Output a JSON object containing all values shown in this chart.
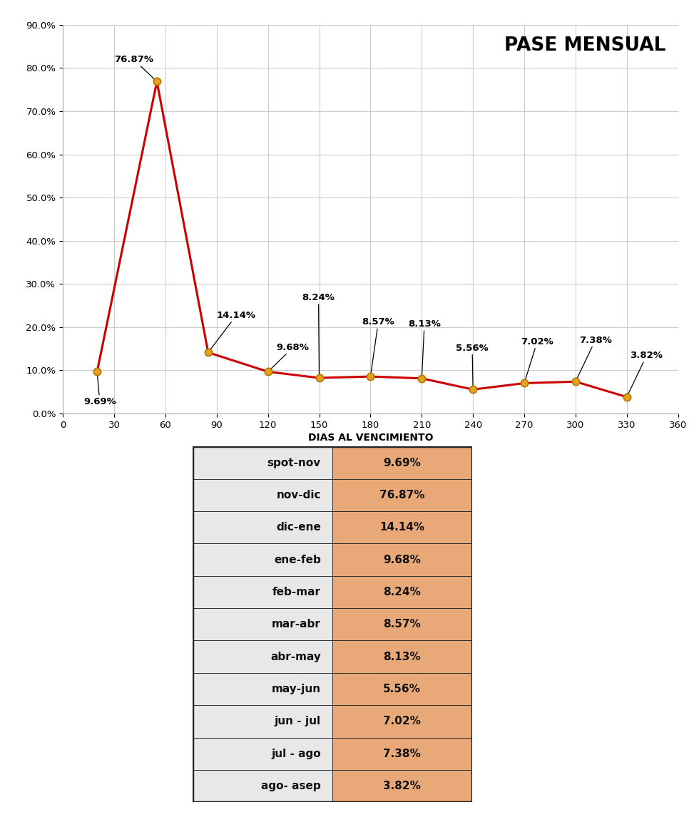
{
  "x_values": [
    20,
    55,
    85,
    120,
    150,
    180,
    210,
    240,
    270,
    300,
    330
  ],
  "y_values": [
    9.69,
    76.87,
    14.14,
    9.68,
    8.24,
    8.57,
    8.13,
    5.56,
    7.02,
    7.38,
    3.82
  ],
  "labels": [
    "9.69%",
    "76.87%",
    "14.14%",
    "9.68%",
    "8.24%",
    "8.57%",
    "8.13%",
    "5.56%",
    "7.02%",
    "7.38%",
    "3.82%"
  ],
  "line_color": "#cc0000",
  "marker_color": "#e8a020",
  "marker_edge_color": "#b07800",
  "title_text": "PASE MENSUAL",
  "xlabel": "DIAS AL VENCIMIENTO",
  "ylim": [
    0.0,
    90.0
  ],
  "xlim": [
    0,
    360
  ],
  "xticks": [
    0,
    30,
    60,
    90,
    120,
    150,
    180,
    210,
    240,
    270,
    300,
    330,
    360
  ],
  "yticks": [
    0.0,
    10.0,
    20.0,
    30.0,
    40.0,
    50.0,
    60.0,
    70.0,
    80.0,
    90.0
  ],
  "ytick_labels": [
    "0.0%",
    "10.0%",
    "20.0%",
    "30.0%",
    "40.0%",
    "50.0%",
    "60.0%",
    "70.0%",
    "80.0%",
    "90.0%"
  ],
  "grid_color": "#cccccc",
  "bg_color": "#ffffff",
  "header_bar_color": "#222222",
  "table_labels": [
    "spot-nov",
    "nov-dic",
    "dic-ene",
    "ene-feb",
    "feb-mar",
    "mar-abr",
    "abr-may",
    "may-jun",
    "jun - jul",
    "jul - ago",
    "ago- asep"
  ],
  "table_values": [
    "9.69%",
    "76.87%",
    "14.14%",
    "9.68%",
    "8.24%",
    "8.57%",
    "8.13%",
    "5.56%",
    "7.02%",
    "7.38%",
    "3.82%"
  ],
  "table_col1_bg": "#e8e8e8",
  "table_col2_bg": "#e8a878",
  "table_border_color": "#222222",
  "table_text_color": "#111111"
}
